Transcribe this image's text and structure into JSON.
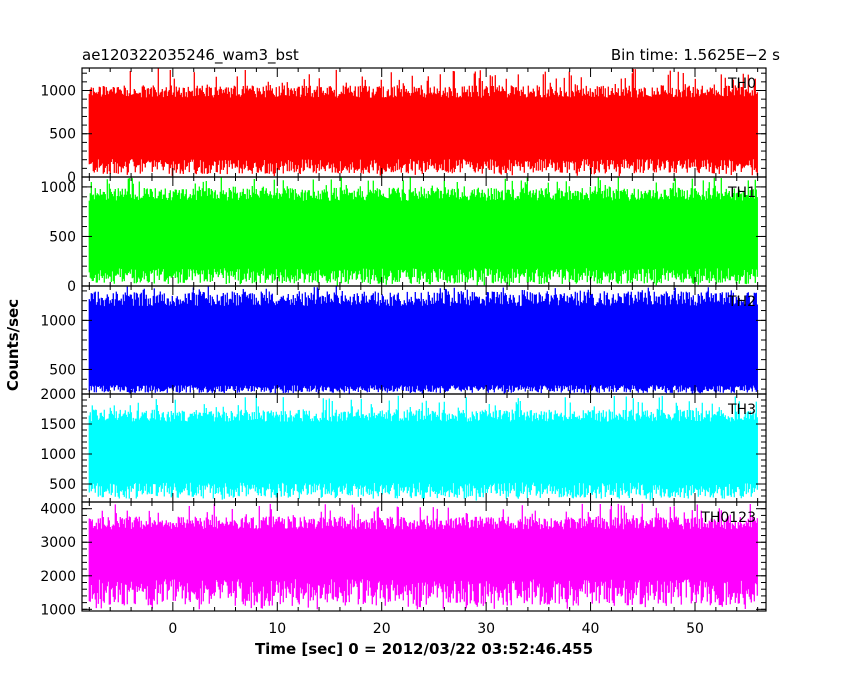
{
  "chart_data": {
    "type": "line",
    "title_left": "ae120322035246_wam3_bst",
    "title_right": "Bin time: 1.5625E−2 s",
    "xlabel": "Time [sec] 0 = 2012/03/22 03:52:46.455",
    "ylabel": "Counts/sec",
    "xlim": [
      -8.7,
      56.8
    ],
    "data_x_range": [
      -8.0,
      56.0
    ],
    "x_ticks": [
      0,
      10,
      20,
      30,
      40,
      50
    ],
    "x_tick_labels": [
      "0",
      "10",
      "20",
      "30",
      "40",
      "50"
    ],
    "grid": false,
    "panels": [
      {
        "label": "TH0",
        "color": "#ff0000",
        "ylim": [
          0,
          1260
        ],
        "y_ticks": [
          0,
          500,
          1000
        ],
        "y_tick_labels": [
          "0",
          "500",
          "1000"
        ],
        "mean": 550,
        "band_low": 120,
        "band_high": 960,
        "min": 10,
        "max": 1260
      },
      {
        "label": "TH1",
        "color": "#00ff00",
        "ylim": [
          0,
          1100
        ],
        "y_ticks": [
          0,
          500,
          1000
        ],
        "y_tick_labels": [
          "0",
          "500",
          "1000"
        ],
        "mean": 530,
        "band_low": 100,
        "band_high": 900,
        "min": 0,
        "max": 1100
      },
      {
        "label": "TH2",
        "color": "#0000ff",
        "ylim": [
          250,
          1350
        ],
        "y_ticks": [
          500,
          1000
        ],
        "y_tick_labels": [
          "500",
          "1000"
        ],
        "mean": 760,
        "band_low": 300,
        "band_high": 1190,
        "min": 250,
        "max": 1350
      },
      {
        "label": "TH3",
        "color": "#00ffff",
        "ylim": [
          200,
          2000
        ],
        "y_ticks": [
          500,
          1000,
          1500,
          2000
        ],
        "y_tick_labels": [
          "500",
          "1000",
          "1500",
          "2000"
        ],
        "mean": 1020,
        "band_low": 390,
        "band_high": 1600,
        "min": 220,
        "max": 1980
      },
      {
        "label": "TH0123",
        "color": "#ff00ff",
        "ylim": [
          950,
          4200
        ],
        "y_ticks": [
          1000,
          2000,
          3000,
          4000
        ],
        "y_tick_labels": [
          "1000",
          "2000",
          "3000",
          "4000"
        ],
        "mean": 2400,
        "band_low": 1500,
        "band_high": 3500,
        "min": 1000,
        "max": 4150
      }
    ]
  }
}
